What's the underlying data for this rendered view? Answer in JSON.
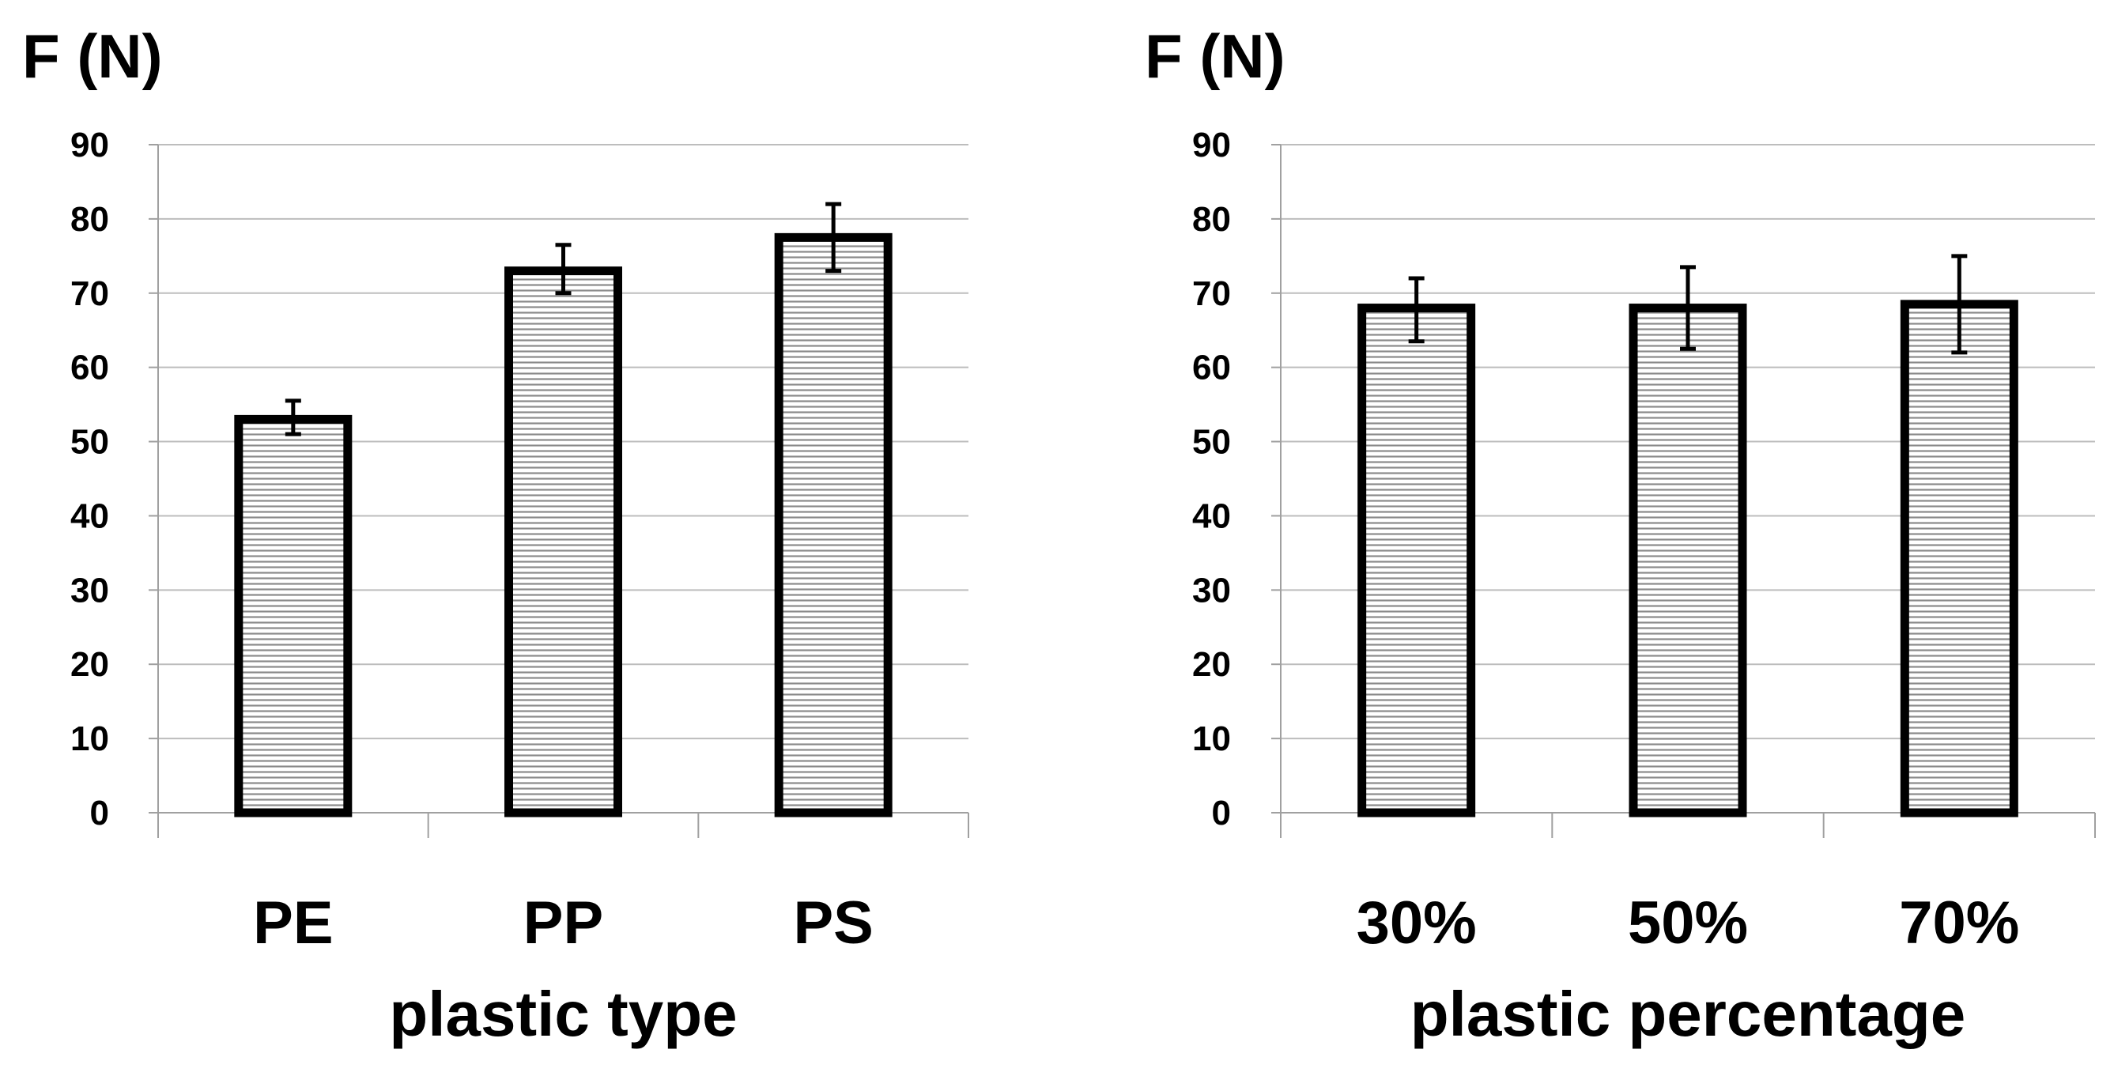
{
  "chart_data": [
    {
      "type": "bar",
      "ylabel": "F (N)",
      "xlabel": "plastic type",
      "categories": [
        "PE",
        "PP",
        "PS"
      ],
      "values": [
        53,
        73,
        77.5
      ],
      "error_low": [
        51,
        70,
        73
      ],
      "error_high": [
        55.5,
        76.5,
        82
      ],
      "ylim": [
        0,
        90
      ],
      "yticks": [
        0,
        10,
        20,
        30,
        40,
        50,
        60,
        70,
        80,
        90
      ],
      "grid": true,
      "legend": "none"
    },
    {
      "type": "bar",
      "ylabel": "F (N)",
      "xlabel": "plastic percentage",
      "categories": [
        "30%",
        "50%",
        "70%"
      ],
      "values": [
        68,
        68,
        68.5
      ],
      "error_low": [
        63.5,
        62.5,
        62
      ],
      "error_high": [
        72,
        73.5,
        75
      ],
      "ylim": [
        0,
        90
      ],
      "yticks": [
        0,
        10,
        20,
        30,
        40,
        50,
        60,
        70,
        80,
        90
      ],
      "grid": true,
      "legend": "none"
    }
  ],
  "colors": {
    "bar_outline": "#000000",
    "hatch": "#8a8a8a",
    "grid": "#bdbdbd",
    "axis": "#a0a0a0"
  }
}
